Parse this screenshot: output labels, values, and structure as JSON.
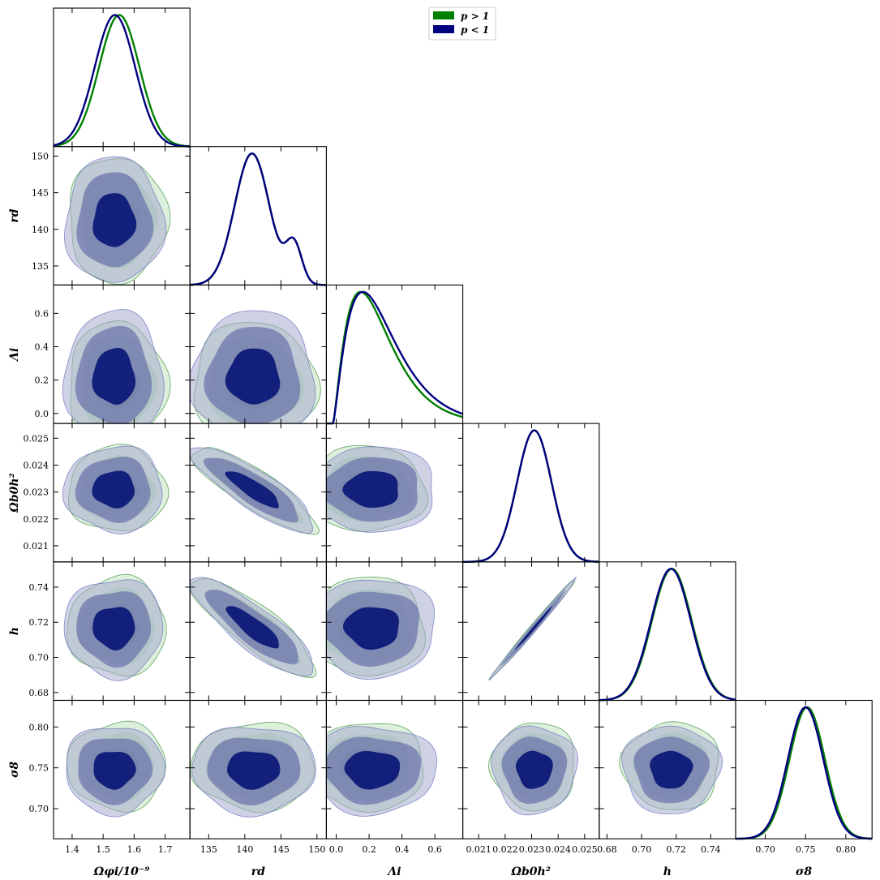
{
  "chart_data": {
    "type": "triangle-corner-plot",
    "parameters": [
      {
        "key": "omega_phi_i",
        "label": "Ωφi/10⁻⁹",
        "range": [
          1.34,
          1.78
        ],
        "ticks": [
          1.4,
          1.5,
          1.6,
          1.7
        ],
        "tick_labels": [
          "1.4",
          "1.5",
          "1.6",
          "1.7"
        ]
      },
      {
        "key": "r_d",
        "label": "rd",
        "range": [
          132.4,
          151.3
        ],
        "ticks": [
          135,
          140,
          145,
          150
        ],
        "tick_labels": [
          "135",
          "140",
          "145",
          "150"
        ]
      },
      {
        "key": "lambda_i",
        "label": "Λi",
        "range": [
          -0.06,
          0.77
        ],
        "ticks": [
          0.0,
          0.2,
          0.4,
          0.6
        ],
        "tick_labels": [
          "0.0",
          "0.2",
          "0.4",
          "0.6"
        ]
      },
      {
        "key": "omega_b0_h2",
        "label": "Ωb0h²",
        "range": [
          0.0204,
          0.02555
        ],
        "ticks": [
          0.021,
          0.022,
          0.023,
          0.024,
          0.025
        ],
        "tick_labels": [
          "0.021",
          "0.022",
          "0.023",
          "0.024",
          "0.025"
        ]
      },
      {
        "key": "h",
        "label": "h",
        "range": [
          0.6755,
          0.7544
        ],
        "ticks": [
          0.68,
          0.7,
          0.72,
          0.74
        ],
        "tick_labels": [
          "0.68",
          "0.70",
          "0.72",
          "0.74"
        ]
      },
      {
        "key": "sigma_8",
        "label": "σ8",
        "range": [
          0.6631,
          0.8326
        ],
        "ticks": [
          0.7,
          0.75,
          0.8
        ],
        "tick_labels": [
          "0.70",
          "0.75",
          "0.80"
        ]
      }
    ],
    "series": [
      {
        "name": "p > 1",
        "color": "#008000",
        "fill": "#98d49a",
        "mean": [
          1.545,
          141.3,
          0.18,
          0.0231,
          0.7175,
          0.752
        ],
        "sigma": [
          0.065,
          3.5,
          0.15,
          0.00065,
          0.0115,
          0.022
        ],
        "mode": [
          1.552,
          141.0,
          0.06,
          0.0231,
          0.7175,
          0.752
        ]
      },
      {
        "name": "p < 1",
        "color": "#000080",
        "fill": "#5a64b4",
        "mean": [
          1.535,
          141.2,
          0.22,
          0.0231,
          0.717,
          0.748
        ],
        "sigma": [
          0.065,
          3.5,
          0.16,
          0.00065,
          0.0115,
          0.022
        ],
        "mode": [
          1.538,
          141.0,
          0.12,
          0.0231,
          0.717,
          0.75
        ]
      }
    ],
    "correlations": {
      "1-3": -0.85,
      "1-4": -0.85,
      "3-4": 0.995
    },
    "legend": {
      "position": "top-center"
    },
    "grid": false
  }
}
